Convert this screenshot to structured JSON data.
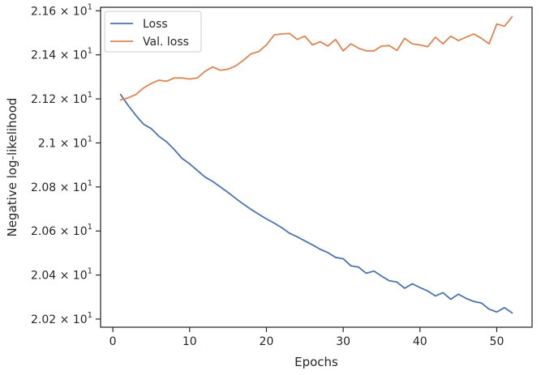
{
  "chart_data": {
    "type": "line",
    "title": "",
    "xlabel": "Epochs",
    "ylabel": "Negative log-likelihood",
    "xlim": [
      -1.6,
      54.6
    ],
    "ylim": [
      20.163,
      21.616
    ],
    "x_ticks": [
      0,
      10,
      20,
      30,
      40,
      50
    ],
    "y_ticks": [
      {
        "value": 20.2,
        "mantissa": "2.02",
        "exponent": "1"
      },
      {
        "value": 20.4,
        "mantissa": "2.04",
        "exponent": "1"
      },
      {
        "value": 20.6,
        "mantissa": "2.06",
        "exponent": "1"
      },
      {
        "value": 20.8,
        "mantissa": "2.08",
        "exponent": "1"
      },
      {
        "value": 21.0,
        "mantissa": "2.1",
        "exponent": "1"
      },
      {
        "value": 21.2,
        "mantissa": "2.12",
        "exponent": "1"
      },
      {
        "value": 21.4,
        "mantissa": "2.14",
        "exponent": "1"
      },
      {
        "value": 21.6,
        "mantissa": "2.16",
        "exponent": "1"
      }
    ],
    "times_sign": "×",
    "tick_base": "10",
    "grid": false,
    "legend_position": "top-left",
    "x": [
      1,
      2,
      3,
      4,
      5,
      6,
      7,
      8,
      9,
      10,
      11,
      12,
      13,
      14,
      15,
      16,
      17,
      18,
      19,
      20,
      21,
      22,
      23,
      24,
      25,
      26,
      27,
      28,
      29,
      30,
      31,
      32,
      33,
      34,
      35,
      36,
      37,
      38,
      39,
      40,
      41,
      42,
      43,
      44,
      45,
      46,
      47,
      48,
      49,
      50,
      51,
      52
    ],
    "series": [
      {
        "name": "Loss",
        "color": "#4c72b0",
        "values": [
          21.22,
          21.17,
          21.125,
          21.085,
          21.065,
          21.03,
          21.005,
          20.97,
          20.93,
          20.905,
          20.875,
          20.845,
          20.825,
          20.8,
          20.775,
          20.748,
          20.722,
          20.698,
          20.676,
          20.655,
          20.636,
          20.615,
          20.59,
          20.574,
          20.555,
          20.537,
          20.517,
          20.502,
          20.48,
          20.474,
          20.442,
          20.436,
          20.408,
          20.418,
          20.395,
          20.374,
          20.368,
          20.34,
          20.36,
          20.343,
          20.328,
          20.305,
          20.32,
          20.29,
          20.313,
          20.294,
          20.28,
          20.273,
          20.245,
          20.232,
          20.252,
          20.228
        ]
      },
      {
        "name": "Val. loss",
        "color": "#dd8452",
        "values": [
          21.195,
          21.205,
          21.22,
          21.25,
          21.27,
          21.285,
          21.28,
          21.295,
          21.295,
          21.29,
          21.295,
          21.325,
          21.345,
          21.33,
          21.335,
          21.35,
          21.375,
          21.405,
          21.415,
          21.445,
          21.49,
          21.495,
          21.497,
          21.47,
          21.485,
          21.445,
          21.46,
          21.44,
          21.47,
          21.418,
          21.45,
          21.43,
          21.418,
          21.418,
          21.44,
          21.442,
          21.42,
          21.475,
          21.45,
          21.445,
          21.437,
          21.48,
          21.45,
          21.485,
          21.465,
          21.48,
          21.495,
          21.475,
          21.45,
          21.54,
          21.53,
          21.573
        ]
      }
    ]
  }
}
